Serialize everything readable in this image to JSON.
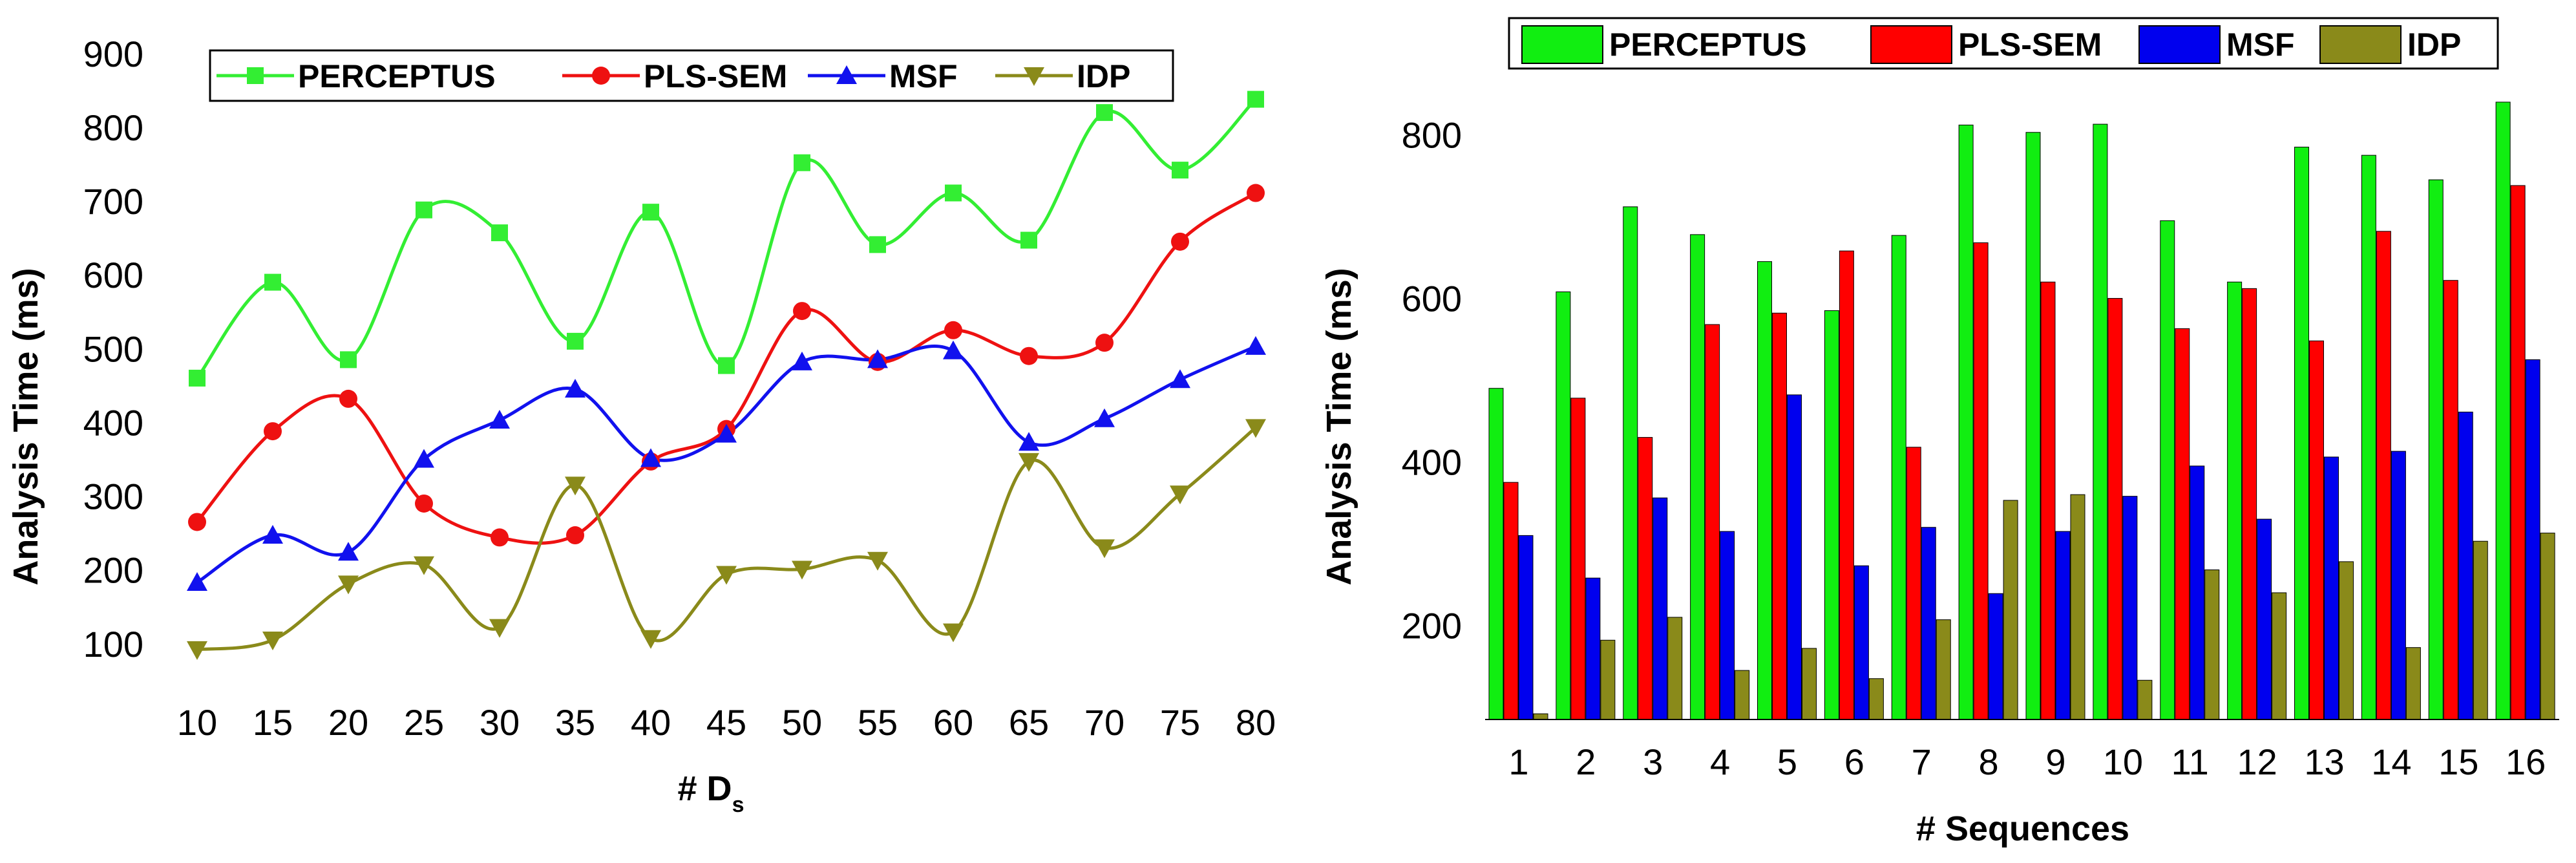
{
  "chart_data": [
    {
      "type": "line",
      "title": "",
      "xlabel": "# D",
      "xlabel_subscript": "s",
      "ylabel": "Analysis Time (ms)",
      "x": [
        10,
        15,
        20,
        25,
        30,
        35,
        40,
        45,
        50,
        55,
        60,
        65,
        70,
        75,
        80
      ],
      "xticks": [
        "10",
        "15",
        "20",
        "25",
        "30",
        "35",
        "40",
        "45",
        "50",
        "55",
        "60",
        "65",
        "70",
        "75",
        "80"
      ],
      "yticks": [
        "100",
        "200",
        "300",
        "400",
        "500",
        "600",
        "700",
        "800",
        "900"
      ],
      "ylim": [
        70,
        920
      ],
      "grid": false,
      "legend_position": "top",
      "series": [
        {
          "name": "PERCEPTUS",
          "color": "#33ee33",
          "marker": "square",
          "values": [
            460,
            590,
            485,
            688,
            657,
            510,
            685,
            477,
            752,
            641,
            711,
            647,
            820,
            742,
            838
          ]
        },
        {
          "name": "PLS-SEM",
          "color": "#ee1111",
          "marker": "circle",
          "values": [
            265,
            388,
            432,
            290,
            244,
            247,
            347,
            391,
            551,
            482,
            525,
            490,
            508,
            645,
            711
          ]
        },
        {
          "name": "MSF",
          "color": "#1111ee",
          "marker": "triangle-up",
          "values": [
            183,
            247,
            224,
            350,
            403,
            445,
            351,
            384,
            482,
            485,
            497,
            373,
            405,
            458,
            503
          ]
        },
        {
          "name": "IDP",
          "color": "#8a8a1a",
          "marker": "triangle-down",
          "values": [
            92,
            105,
            181,
            207,
            122,
            315,
            107,
            194,
            201,
            213,
            116,
            347,
            230,
            303,
            393
          ]
        }
      ]
    },
    {
      "type": "bar",
      "title": "",
      "xlabel": "# Sequences",
      "ylabel": "Analysis Time (ms)",
      "categories": [
        "1",
        "2",
        "3",
        "4",
        "5",
        "6",
        "7",
        "8",
        "9",
        "10",
        "11",
        "12",
        "13",
        "14",
        "15",
        "16"
      ],
      "yticks": [
        "200",
        "400",
        "600",
        "800"
      ],
      "ylim": [
        85,
        870
      ],
      "grid": false,
      "legend_position": "top",
      "series": [
        {
          "name": "PERCEPTUS",
          "color": "#11ee11",
          "values": [
            490,
            608,
            712,
            678,
            645,
            585,
            677,
            812,
            803,
            813,
            695,
            620,
            785,
            775,
            745,
            840
          ]
        },
        {
          "name": "PLS-SEM",
          "color": "#ff0000",
          "values": [
            375,
            478,
            430,
            568,
            582,
            658,
            418,
            668,
            620,
            600,
            563,
            612,
            548,
            682,
            622,
            738
          ]
        },
        {
          "name": "MSF",
          "color": "#0000ee",
          "values": [
            310,
            258,
            356,
            315,
            482,
            273,
            320,
            239,
            315,
            358,
            395,
            330,
            406,
            413,
            461,
            525
          ]
        },
        {
          "name": "IDP",
          "color": "#8a8a1a",
          "values": [
            92,
            182,
            210,
            145,
            172,
            135,
            207,
            353,
            360,
            133,
            268,
            240,
            278,
            173,
            303,
            313
          ]
        }
      ]
    }
  ]
}
